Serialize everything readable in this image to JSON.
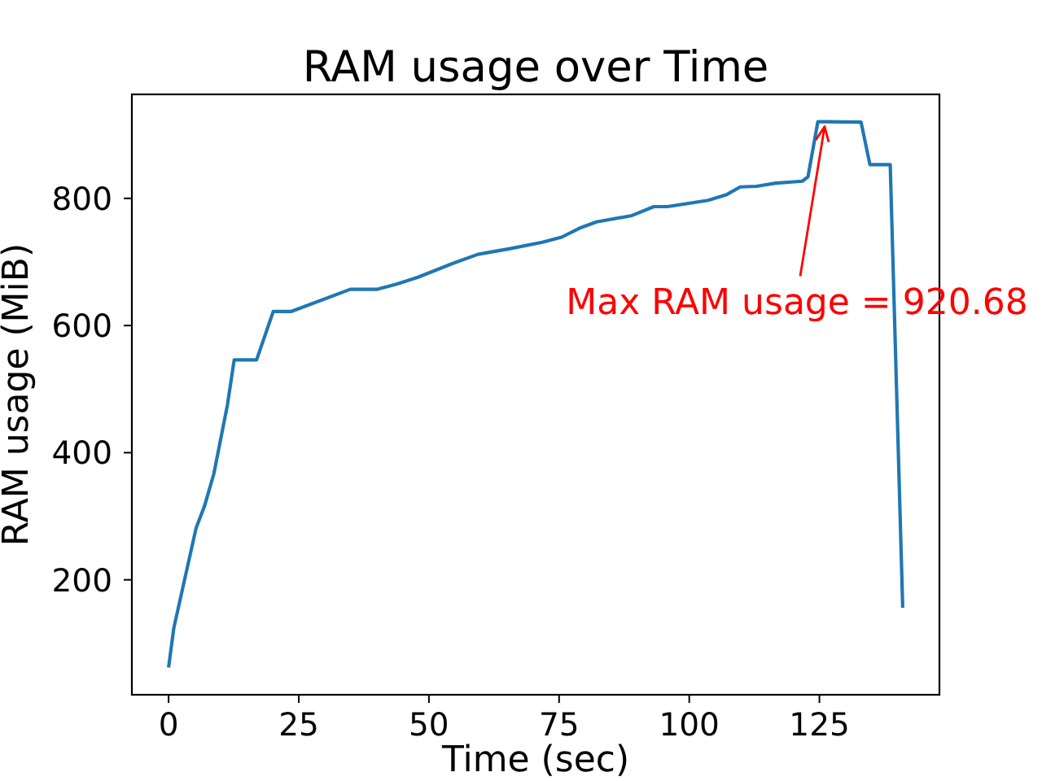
{
  "chart_data": {
    "type": "line",
    "title": "RAM usage over Time",
    "xlabel": "Time (sec)",
    "ylabel": "RAM usage (MiB)",
    "x": [
      0,
      1,
      5.3,
      6.9,
      8.7,
      11.3,
      12.6,
      16.9,
      20.1,
      23.5,
      34.9,
      40.1,
      43.8,
      47.9,
      54.7,
      59.4,
      65.6,
      71.8,
      75.5,
      78.9,
      82.2,
      89,
      93.2,
      95.8,
      103.6,
      107.2,
      109.8,
      112.9,
      116.6,
      121.7,
      122.8,
      124.7,
      133,
      134.7,
      138.6,
      141
    ],
    "series": [
      {
        "color": "#1f77b4",
        "values": [
          62,
          124,
          282,
          316,
          367,
          475,
          546,
          546,
          622,
          622,
          657,
          657,
          665,
          676,
          698,
          712,
          721,
          731,
          739,
          753,
          763,
          773,
          787,
          787,
          797,
          806,
          818,
          819,
          824,
          827,
          834,
          920.68,
          920,
          853,
          853,
          156
        ]
      }
    ],
    "xlim": [
      -7.05,
      148.05
    ],
    "ylim": [
      19.2,
      963.6
    ],
    "xticks": [
      0,
      25,
      50,
      75,
      100,
      125
    ],
    "yticks": [
      200,
      400,
      600,
      800
    ],
    "grid": false,
    "marker": "none",
    "line_style": "solid",
    "annotations": [
      {
        "text": "Max RAM usage = 920.68",
        "x": 126,
        "y": 920.68
      }
    ]
  }
}
